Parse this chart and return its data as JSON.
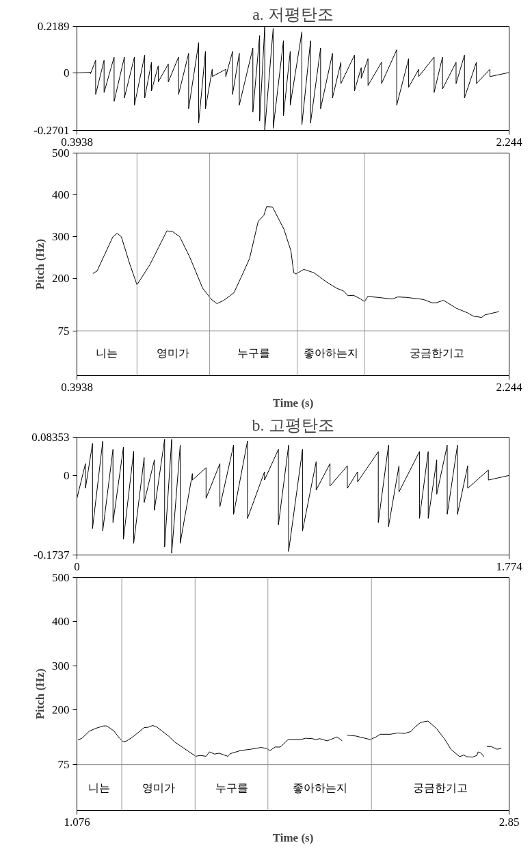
{
  "chart_data": [
    {
      "type": "line",
      "title": "a. 저평탄조",
      "xlim": [
        0.3938,
        2.244
      ],
      "xticks": [
        0.3938,
        2.244
      ],
      "ylim": [
        -0.2701,
        0.2189
      ],
      "yticks": [
        -0.2701,
        0,
        0.2189
      ],
      "grid": false,
      "series": [
        {
          "color": "#000000",
          "x": [
            0.394,
            0.394,
            0.452,
            0.452,
            0.474,
            0.474,
            0.51,
            0.51,
            0.553,
            0.553,
            0.597,
            0.597,
            0.64,
            0.64,
            0.684,
            0.684,
            0.713,
            0.713,
            0.742,
            0.742,
            0.785,
            0.785,
            0.829,
            0.829,
            0.872,
            0.872,
            0.915,
            0.915,
            0.944,
            0.944,
            0.973,
            0.973,
            1.031,
            1.031,
            1.06,
            1.06,
            1.089,
            1.089,
            1.147,
            1.147,
            1.176,
            1.176,
            1.198,
            1.198,
            1.234,
            1.234,
            1.278,
            1.278,
            1.307,
            1.307,
            1.357,
            1.357,
            1.394,
            1.394,
            1.437,
            1.437,
            1.488,
            1.488,
            1.524,
            1.524,
            1.582,
            1.582,
            1.611,
            1.611,
            1.64,
            1.64,
            1.698,
            1.698,
            1.763,
            1.763,
            1.814,
            1.814,
            1.857,
            1.857,
            1.923,
            1.923,
            1.959,
            1.959,
            2.017,
            2.017,
            2.053,
            2.053,
            2.104,
            2.104,
            2.162,
            2.162,
            2.244,
            2.244
          ],
          "values": [
            0,
            0,
            0.003,
            -0.003,
            0.059,
            -0.101,
            0.059,
            -0.092,
            0.075,
            -0.134,
            0.075,
            -0.117,
            0.075,
            -0.151,
            0.084,
            -0.117,
            0.05,
            -0.084,
            0.034,
            -0.042,
            0.042,
            -0.042,
            0.075,
            -0.101,
            0.092,
            -0.168,
            0.142,
            -0.235,
            0.101,
            -0.168,
            0.017,
            -0.017,
            0.017,
            -0.017,
            0.101,
            -0.101,
            0.092,
            -0.151,
            0.117,
            -0.184,
            0.176,
            -0.226,
            0.218,
            -0.268,
            0.209,
            -0.26,
            0.151,
            -0.201,
            0.101,
            -0.151,
            0.193,
            -0.243,
            0.151,
            -0.235,
            0.117,
            -0.168,
            0.092,
            -0.117,
            0.05,
            -0.05,
            0.084,
            -0.084,
            0.025,
            -0.025,
            0.067,
            -0.059,
            0.05,
            -0.05,
            0.109,
            -0.151,
            0.067,
            -0.067,
            0.017,
            -0.017,
            0.075,
            -0.092,
            0.075,
            -0.075,
            0.05,
            -0.05,
            0.084,
            -0.117,
            0.05,
            -0.05,
            0.017,
            -0.017,
            0.002,
            -0.002
          ]
        }
      ]
    },
    {
      "type": "line",
      "xlabel": "Time (s)",
      "ylabel": "Pitch (Hz)",
      "xlim": [
        0.3938,
        2.244
      ],
      "xticks": [
        0.3938,
        2.244
      ],
      "ylim": [
        -32,
        500
      ],
      "yticks": [
        75,
        200,
        300,
        400,
        500
      ],
      "grid": false,
      "series": [
        {
          "color": "#000000",
          "x": [
            0.462,
            0.48,
            0.523,
            0.548,
            0.566,
            0.584,
            0.621,
            0.651,
            0.706,
            0.743,
            0.779,
            0.804,
            0.834,
            0.877,
            0.932,
            0.968,
            0.993,
            1.023,
            1.066,
            1.109,
            1.133,
            1.17,
            1.194,
            1.206,
            1.231,
            1.28,
            1.31,
            1.322,
            1.332,
            1.365,
            1.408,
            1.462,
            1.505,
            1.536,
            1.554,
            1.578,
            1.609,
            1.625,
            1.639,
            1.682,
            1.743,
            1.767,
            1.804,
            1.877,
            1.914,
            1.932,
            1.963,
            2.018,
            2.066,
            2.091,
            2.127,
            2.14,
            2.201
          ],
          "values": [
            212,
            218,
            270,
            300,
            308,
            300,
            233,
            185,
            233,
            274,
            314,
            312,
            300,
            251,
            177,
            151,
            140,
            148,
            166,
            218,
            248,
            337,
            351,
            372,
            371,
            318,
            266,
            214,
            211,
            222,
            214,
            192,
            177,
            170,
            159,
            160,
            151,
            145,
            157,
            155,
            151,
            156,
            155,
            150,
            142,
            142,
            148,
            129,
            118,
            110,
            107,
            113,
            121
          ]
        }
      ],
      "ref_lines": [
        {
          "axis": "x",
          "value": 0.651,
          "color": "#999999"
        },
        {
          "axis": "x",
          "value": 0.962,
          "color": "#999999"
        },
        {
          "axis": "x",
          "value": 1.337,
          "color": "#999999"
        },
        {
          "axis": "x",
          "value": 1.625,
          "color": "#999999"
        },
        {
          "axis": "y",
          "value": 75,
          "color": "#888888"
        }
      ],
      "annotations": [
        "니는",
        "영미가",
        "누구를",
        "좋아하는지",
        "궁금한기고"
      ]
    },
    {
      "type": "line",
      "title": "b. 고평탄조",
      "xlim": [
        0,
        1.774
      ],
      "xticks": [
        0,
        1.774
      ],
      "ylim": [
        -0.1737,
        0.08353
      ],
      "yticks": [
        -0.1737,
        0,
        0.08353
      ],
      "grid": false,
      "series": [
        {
          "color": "#000000",
          "x": [
            0.0,
            0.0,
            0.035,
            0.035,
            0.064,
            0.064,
            0.106,
            0.106,
            0.148,
            0.148,
            0.191,
            0.191,
            0.233,
            0.233,
            0.276,
            0.276,
            0.318,
            0.318,
            0.36,
            0.36,
            0.389,
            0.389,
            0.424,
            0.424,
            0.474,
            0.474,
            0.53,
            0.53,
            0.587,
            0.587,
            0.643,
            0.643,
            0.7,
            0.7,
            0.77,
            0.77,
            0.827,
            0.827,
            0.869,
            0.869,
            0.926,
            0.926,
            0.982,
            0.982,
            1.039,
            1.039,
            1.11,
            1.11,
            1.152,
            1.152,
            1.237,
            1.237,
            1.279,
            1.279,
            1.322,
            1.322,
            1.406,
            1.406,
            1.442,
            1.442,
            1.477,
            1.477,
            1.52,
            1.52,
            1.562,
            1.562,
            1.604,
            1.604,
            1.689,
            1.689,
            1.774,
            1.774
          ],
          "values": [
            0.021,
            -0.05,
            0.026,
            -0.028,
            0.07,
            -0.116,
            0.075,
            -0.121,
            0.057,
            -0.103,
            0.062,
            -0.139,
            0.053,
            -0.148,
            0.039,
            -0.059,
            0.034,
            -0.076,
            0.079,
            -0.156,
            0.079,
            -0.17,
            0.066,
            -0.148,
            0.004,
            -0.01,
            0.017,
            -0.05,
            0.026,
            -0.068,
            0.066,
            -0.085,
            0.075,
            -0.094,
            0.008,
            -0.01,
            0.057,
            -0.108,
            0.066,
            -0.166,
            0.057,
            -0.121,
            0.03,
            -0.032,
            0.026,
            -0.023,
            0.021,
            -0.028,
            0.008,
            -0.014,
            0.052,
            -0.103,
            0.066,
            -0.112,
            0.021,
            -0.036,
            0.052,
            -0.094,
            0.052,
            -0.094,
            0.034,
            -0.041,
            0.066,
            -0.085,
            0.066,
            -0.085,
            0.021,
            -0.028,
            0.012,
            -0.01,
            0,
            -0.002
          ]
        }
      ]
    },
    {
      "type": "line",
      "xlabel": "Time (s)",
      "ylabel": "Pitch (Hz)",
      "xlim": [
        1.076,
        2.85
      ],
      "xticks": [
        1.076,
        2.85
      ],
      "ylim": [
        -29,
        500
      ],
      "yticks": [
        75,
        200,
        300,
        400,
        500
      ],
      "grid": false,
      "series": [
        {
          "color": "#000000",
          "x": [
            1.08,
            1.097,
            1.127,
            1.156,
            1.186,
            1.198,
            1.227,
            1.251,
            1.266,
            1.281,
            1.31,
            1.352,
            1.369,
            1.387,
            1.405,
            1.452,
            1.476,
            1.529,
            1.564,
            1.582,
            1.606,
            1.62,
            1.641,
            1.659,
            1.695,
            1.706,
            1.748,
            1.789,
            1.831,
            1.854,
            1.868,
            1.89,
            1.911,
            1.943,
            1.996,
            2.014,
            2.043,
            2.055,
            2.073,
            2.103,
            2.144,
            2.165,
            2.175,
            2.185,
            2.221,
            2.28,
            2.304,
            2.321,
            2.363,
            2.392,
            2.422,
            2.446,
            2.463,
            2.487,
            2.517,
            2.552,
            2.588,
            2.611,
            2.647,
            2.664,
            2.676,
            2.7,
            2.718,
            2.723,
            2.735,
            2.747,
            2.752,
            2.759,
            2.777,
            2.8,
            2.818
          ],
          "values": [
            131,
            135,
            151,
            158,
            163,
            163,
            152,
            135,
            127,
            129,
            140,
            159,
            160,
            164,
            160,
            140,
            127,
            107,
            94,
            96,
            94,
            104,
            99,
            101,
            94,
            100,
            107,
            110,
            114,
            112,
            107,
            115,
            115,
            132,
            132,
            135,
            134,
            132,
            134,
            129,
            138,
            129,
            null,
            142,
            140,
            132,
            138,
            144,
            144,
            147,
            146,
            150,
            160,
            171,
            174,
            157,
            131,
            110,
            93,
            97,
            93,
            92,
            96,
            104,
            101,
            93,
            null,
            116,
            116,
            110,
            112
          ]
        }
      ],
      "ref_lines": [
        {
          "axis": "x",
          "value": 1.26,
          "color": "#999999"
        },
        {
          "axis": "x",
          "value": 1.561,
          "color": "#999999"
        },
        {
          "axis": "x",
          "value": 1.86,
          "color": "#999999"
        },
        {
          "axis": "x",
          "value": 2.285,
          "color": "#999999"
        },
        {
          "axis": "y",
          "value": 75,
          "color": "#888888"
        }
      ],
      "annotations": [
        "니는",
        "영미가",
        "누구를",
        "좋아하는지",
        "궁금한기고"
      ]
    }
  ]
}
